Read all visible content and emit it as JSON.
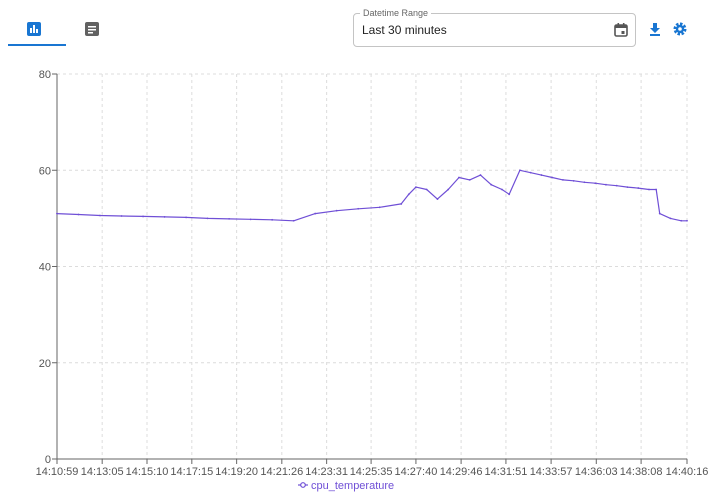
{
  "toolbar": {
    "date_range_label": "Datetime Range",
    "date_range_value": "Last 30 minutes"
  },
  "colors": {
    "accent": "#1976d2",
    "series": "#6f4fd6",
    "icon_gray": "#555555"
  },
  "chart_data": {
    "type": "line",
    "ylim": [
      0,
      80
    ],
    "y_ticks": [
      0,
      20,
      40,
      60,
      80
    ],
    "x_tick_labels": [
      "14:10:59",
      "14:13:05",
      "14:15:10",
      "14:17:15",
      "14:19:20",
      "14:21:26",
      "14:23:31",
      "14:25:35",
      "14:27:40",
      "14:29:46",
      "14:31:51",
      "14:33:57",
      "14:36:03",
      "14:38:08",
      "14:40:16"
    ],
    "grid": true,
    "legend_position": "bottom-center",
    "series": [
      {
        "name": "cpu_temperature",
        "x": [
          "14:10:59",
          "14:11:59",
          "14:12:59",
          "14:13:59",
          "14:14:59",
          "14:15:59",
          "14:16:59",
          "14:17:59",
          "14:18:59",
          "14:19:59",
          "14:20:59",
          "14:21:59",
          "14:22:59",
          "14:23:59",
          "14:24:59",
          "14:25:59",
          "14:26:59",
          "14:27:20",
          "14:27:40",
          "14:28:10",
          "14:28:40",
          "14:29:10",
          "14:29:40",
          "14:30:10",
          "14:30:40",
          "14:31:10",
          "14:31:40",
          "14:32:00",
          "14:32:30",
          "14:33:00",
          "14:33:30",
          "14:34:00",
          "14:34:30",
          "14:35:00",
          "14:35:30",
          "14:36:00",
          "14:36:30",
          "14:37:00",
          "14:37:30",
          "14:38:00",
          "14:38:30",
          "14:38:50",
          "14:39:00",
          "14:39:30",
          "14:40:00",
          "14:40:16"
        ],
        "values": [
          51.0,
          50.8,
          50.6,
          50.5,
          50.4,
          50.3,
          50.2,
          50.0,
          49.9,
          49.8,
          49.7,
          49.5,
          51.0,
          51.6,
          52.0,
          52.3,
          53.0,
          55.0,
          56.5,
          56.0,
          54.0,
          56.0,
          58.5,
          58.0,
          59.0,
          57.0,
          56.0,
          55.0,
          60.0,
          59.5,
          59.0,
          58.5,
          58.0,
          57.8,
          57.5,
          57.3,
          57.0,
          56.8,
          56.5,
          56.3,
          56.0,
          56.0,
          51.0,
          50.0,
          49.5,
          49.5
        ]
      }
    ]
  }
}
